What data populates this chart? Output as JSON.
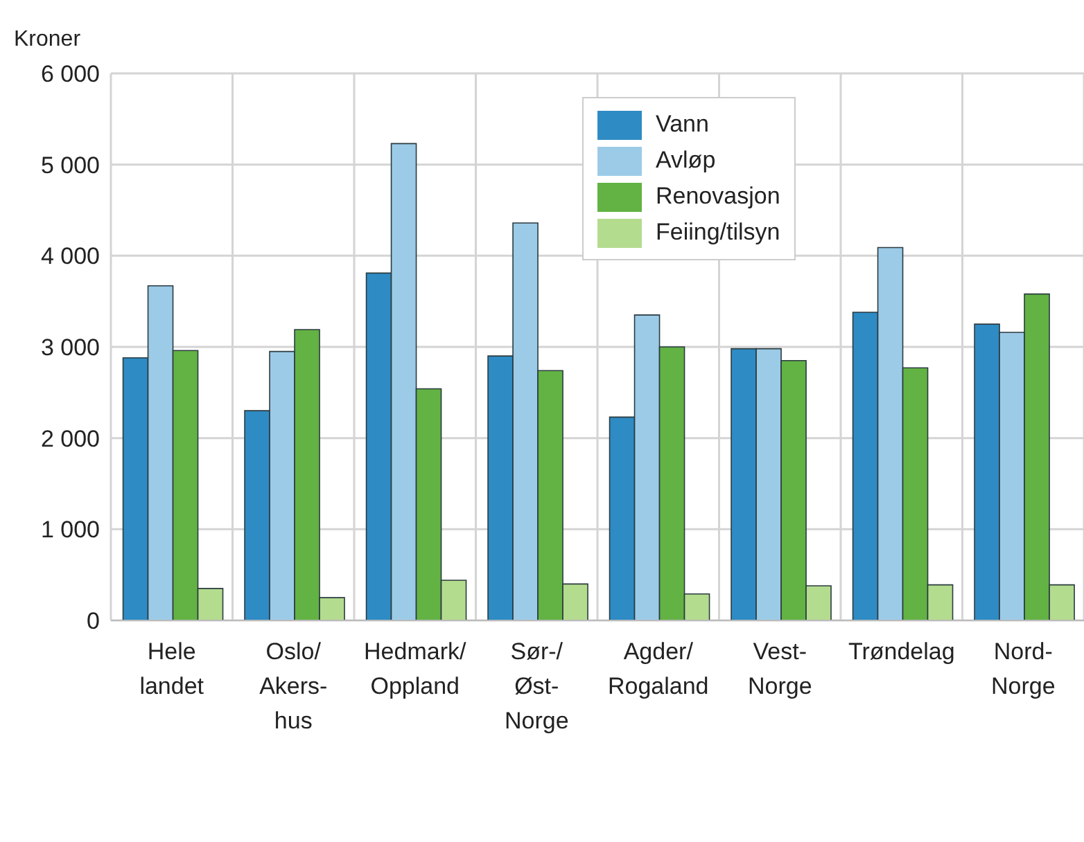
{
  "chart_data": {
    "type": "bar",
    "ylabel": "Kroner",
    "categories": [
      "Hele\nlandet",
      "Oslo/\nAkers-\nhus",
      "Hedmark/\nOppland",
      "Sør-/\nØst-\nNorge",
      "Agder/\nRogaland",
      "Vest-\nNorge",
      "Trøndelag",
      "Nord-\nNorge"
    ],
    "series": [
      {
        "name": "Vann",
        "color": "#2e8bc4",
        "values": [
          2880,
          2300,
          3810,
          2900,
          2230,
          2980,
          3380,
          3250
        ]
      },
      {
        "name": "Avløp",
        "color": "#9ccbe8",
        "values": [
          3670,
          2950,
          5230,
          4360,
          3350,
          2980,
          4090,
          3160
        ]
      },
      {
        "name": "Renovasjon",
        "color": "#62b244",
        "values": [
          2960,
          3190,
          2540,
          2740,
          3000,
          2850,
          2770,
          3580
        ]
      },
      {
        "name": "Feiing/tilsyn",
        "color": "#b3dc8f",
        "values": [
          350,
          250,
          440,
          400,
          290,
          380,
          390,
          390
        ]
      }
    ],
    "ylim": [
      0,
      6000
    ],
    "yticks": [
      0,
      {
        "value": 1000,
        "label": "1 000"
      },
      {
        "value": 2000,
        "label": "2 000"
      },
      {
        "value": 3000,
        "label": "3 000"
      },
      {
        "value": 4000,
        "label": "4 000"
      },
      {
        "value": 5000,
        "label": "5 000"
      },
      {
        "value": 6000,
        "label": "6 000"
      }
    ],
    "grid": true,
    "legend": "top right"
  }
}
